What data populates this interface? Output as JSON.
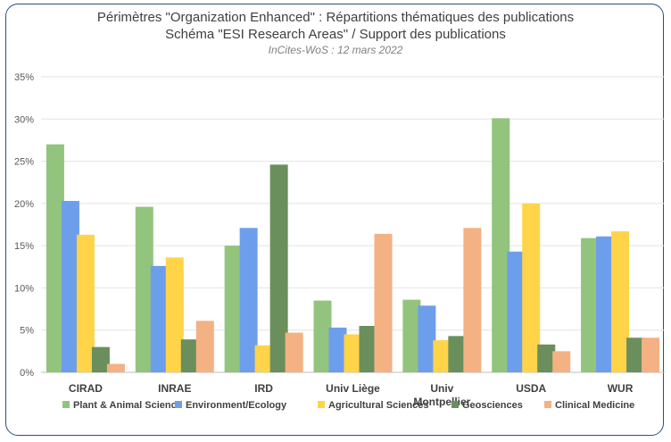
{
  "chart_data": {
    "type": "bar",
    "title": "Périmètres \"Organization Enhanced\" : Répartitions thématiques des publications",
    "subtitle": "Schéma \"ESI Research Areas\" / Support des publications",
    "source_note": "InCites-WoS : 12 mars 2022",
    "categories": [
      "CIRAD",
      "INRAE",
      "IRD",
      "Univ Liège",
      "Univ Montpellier",
      "USDA",
      "WUR"
    ],
    "ylim": [
      0,
      35
    ],
    "yticks": [
      "0%",
      "5%",
      "10%",
      "15%",
      "20%",
      "25%",
      "30%",
      "35%"
    ],
    "grid": true,
    "legend_position": "bottom",
    "series": [
      {
        "name": "Plant & Animal Science",
        "color": "#93c47d",
        "values": [
          27.0,
          19.6,
          15.0,
          8.5,
          8.6,
          30.1,
          15.9
        ]
      },
      {
        "name": "Environment/Ecology",
        "color": "#6d9eeb",
        "values": [
          20.3,
          12.6,
          17.1,
          5.3,
          7.9,
          14.3,
          16.1
        ]
      },
      {
        "name": "Agricultural Sciences",
        "color": "#ffd449",
        "values": [
          16.3,
          13.6,
          3.2,
          4.5,
          3.8,
          20.0,
          16.7
        ]
      },
      {
        "name": "Geosciences",
        "color": "#6a8f5c",
        "values": [
          3.0,
          3.9,
          24.6,
          5.5,
          4.3,
          3.3,
          4.1
        ]
      },
      {
        "name": "Clinical Medicine",
        "color": "#f4b183",
        "values": [
          1.0,
          6.1,
          4.7,
          16.4,
          17.1,
          2.5,
          4.1
        ]
      }
    ]
  }
}
